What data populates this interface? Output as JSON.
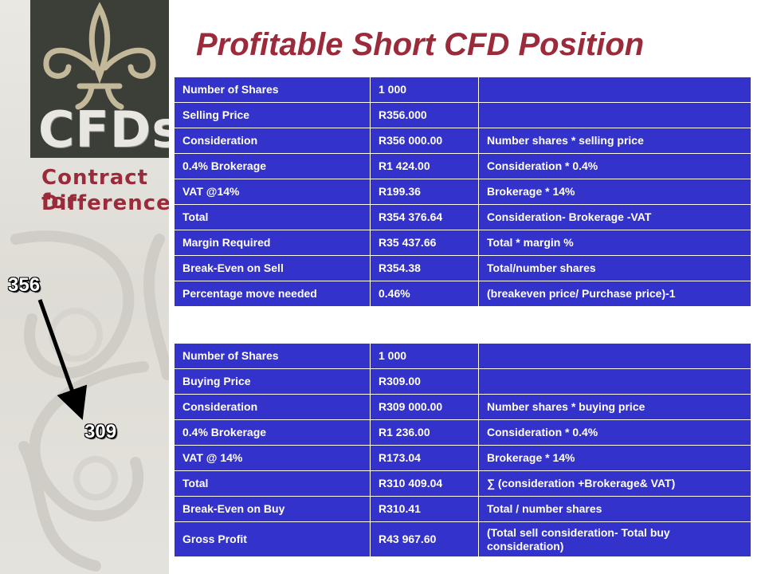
{
  "title": "Profitable Short CFD Position",
  "logo": {
    "brand": "CFDs",
    "tagline_line1": "Contract for",
    "tagline_line2": "Difference"
  },
  "price_labels": {
    "start": "356",
    "end": "309"
  },
  "sell_table": {
    "rows": [
      [
        "Number of Shares",
        "1 000",
        ""
      ],
      [
        "Selling Price",
        "R356.000",
        ""
      ],
      [
        "Consideration",
        "R356 000.00",
        "Number shares * selling price"
      ],
      [
        "0.4% Brokerage",
        "R1 424.00",
        "Consideration * 0.4%"
      ],
      [
        "VAT @14%",
        "R199.36",
        "Brokerage * 14%"
      ],
      [
        "Total",
        "R354 376.64",
        "Consideration- Brokerage -VAT"
      ],
      [
        "Margin Required",
        "R35 437.66",
        "Total * margin %"
      ],
      [
        "Break-Even on Sell",
        "R354.38",
        "Total/number shares"
      ],
      [
        "Percentage move needed",
        "0.46%",
        "(breakeven price/ Purchase price)-1"
      ]
    ]
  },
  "buy_table": {
    "rows": [
      [
        "Number of Shares",
        "1 000",
        ""
      ],
      [
        "Buying Price",
        "R309.00",
        ""
      ],
      [
        "Consideration",
        "R309 000.00",
        "Number shares * buying price"
      ],
      [
        "0.4% Brokerage",
        "R1 236.00",
        "Consideration * 0.4%"
      ],
      [
        "VAT @ 14%",
        "R173.04",
        "Brokerage * 14%"
      ],
      [
        "Total",
        "R310 409.04",
        "∑ (consideration +Brokerage& VAT)"
      ],
      [
        "Break-Even on Buy",
        "R310.41",
        "Total / number shares"
      ],
      [
        "Gross Profit",
        "R43 967.60",
        "(Total sell consideration- Total buy consideration)"
      ]
    ]
  },
  "colors": {
    "table_bg": "#3333cc",
    "title": "#9b2b3a",
    "logo_band": "#3b3f37"
  }
}
